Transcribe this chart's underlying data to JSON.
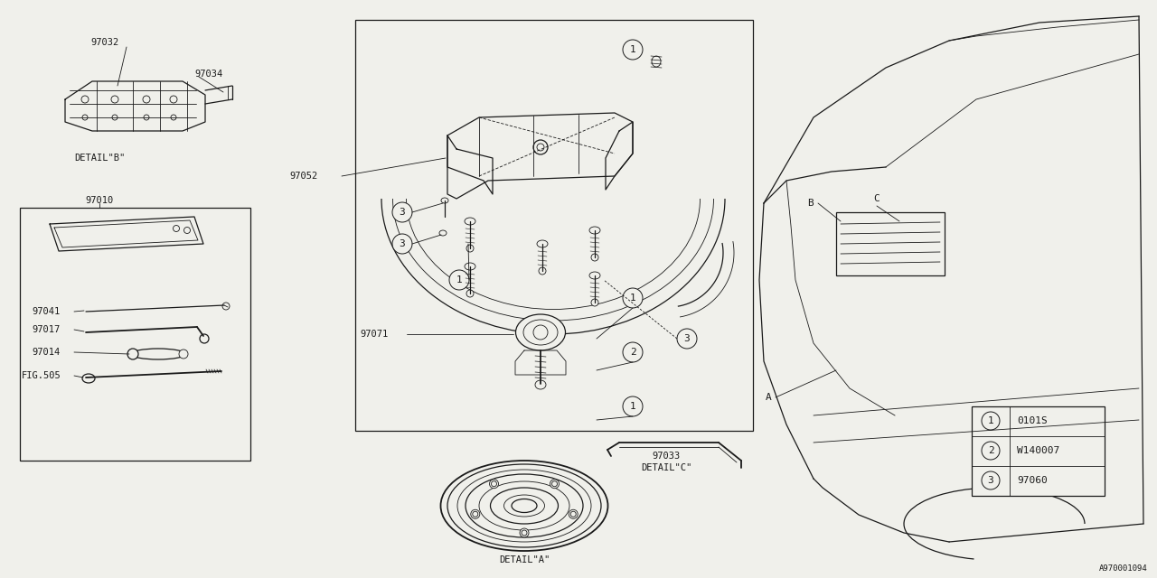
{
  "bg_color": "#f0f0eb",
  "line_color": "#1a1a1a",
  "diagram_id": "A970001094",
  "legend": [
    {
      "num": "1",
      "code": "0101S"
    },
    {
      "num": "2",
      "code": "W140007"
    },
    {
      "num": "3",
      "code": "97060"
    }
  ],
  "font": "monospace"
}
